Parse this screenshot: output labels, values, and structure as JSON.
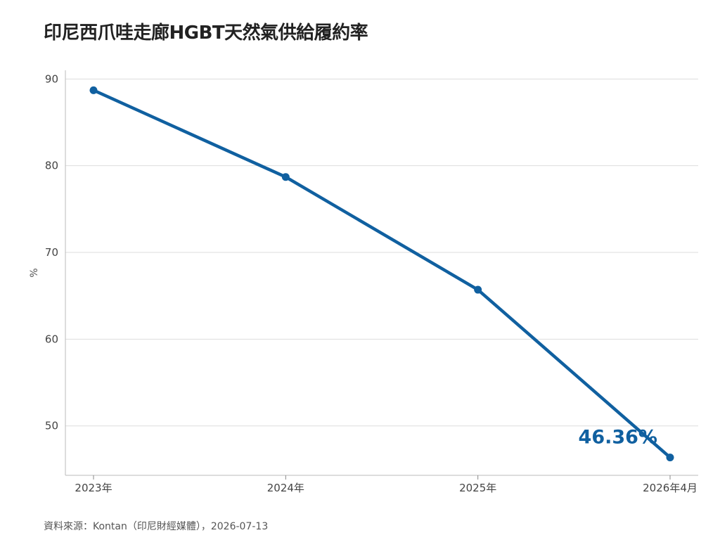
{
  "title": "印尼西爪哇走廊HGBT天然氣供給履約率",
  "source": "資料來源：Kontan（印尼財經媒體），2026-07-13",
  "colors": {
    "series": "#1060a0",
    "grid": "#dddddd",
    "axis": "#bbbbbb"
  },
  "chart_data": {
    "type": "line",
    "title": "印尼西爪哇走廊HGBT天然氣供給履約率",
    "xlabel": "",
    "ylabel": "%",
    "categories": [
      "2023年",
      "2024年",
      "2025年",
      "2026年4月"
    ],
    "series": [
      {
        "values": [
          88.7,
          78.7,
          65.7,
          46.36
        ]
      }
    ],
    "ylim": [
      44.3,
      91
    ],
    "yticks": [
      50,
      60,
      70,
      80,
      90
    ],
    "grid": true,
    "legend": "none",
    "annotations": [
      {
        "text": "46.36%",
        "category": "2026年4月",
        "value": 46.36
      }
    ]
  }
}
